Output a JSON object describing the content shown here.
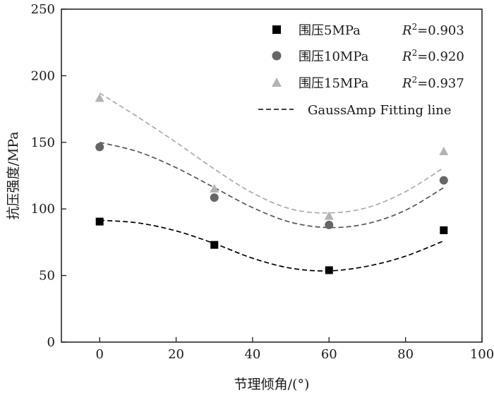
{
  "chart_data": {
    "type": "scatter",
    "xlabel": "节理倾角/(°)",
    "ylabel": "抗压强度/MPa",
    "xlim": [
      -10,
      100
    ],
    "ylim": [
      0,
      250
    ],
    "x_ticks": [
      0,
      20,
      40,
      60,
      80,
      100
    ],
    "y_ticks": [
      0,
      50,
      100,
      150,
      200,
      250
    ],
    "grid": false,
    "legend_position": "top-right",
    "series": [
      {
        "name": "围压5MPa",
        "r2_label": "R",
        "r2_sup": "2",
        "r2_value": "=0.903",
        "marker": "square",
        "color": "#000000",
        "fit_color": "#000000",
        "x": [
          0,
          30,
          60,
          90
        ],
        "values": [
          90.5,
          73,
          54,
          84
        ],
        "fit": {
          "x": [
            0,
            10,
            20,
            30,
            40,
            50,
            60,
            70,
            80,
            90
          ],
          "y": [
            91.5,
            89.5,
            83.5,
            74,
            63,
            55.5,
            53.5,
            57,
            64.5,
            76
          ]
        }
      },
      {
        "name": "围压10MPa",
        "r2_label": "R",
        "r2_sup": "2",
        "r2_value": "=0.920",
        "marker": "circle",
        "color": "#666666",
        "fit_color": "#555555",
        "x": [
          0,
          30,
          60,
          90
        ],
        "values": [
          146.5,
          108.5,
          88,
          121.5
        ],
        "fit": {
          "x": [
            0,
            10,
            20,
            30,
            40,
            50,
            60,
            70,
            80,
            90
          ],
          "y": [
            150,
            143,
            131,
            116,
            101,
            90,
            86,
            89,
            99,
            116
          ]
        }
      },
      {
        "name": "围压15MPa",
        "r2_label": "R",
        "r2_sup": "2",
        "r2_value": "=0.937",
        "marker": "triangle",
        "color": "#b3b3b3",
        "fit_color": "#aaaaaa",
        "x": [
          0,
          30,
          60,
          90
        ],
        "values": [
          183,
          115,
          94.5,
          143
        ],
        "fit": {
          "x": [
            0,
            10,
            20,
            30,
            40,
            50,
            60,
            70,
            80,
            90
          ],
          "y": [
            187,
            169,
            150,
            130,
            112,
            100,
            97,
            101,
            113,
            131
          ]
        }
      }
    ],
    "fit_legend": "GaussAmp Fitting line"
  }
}
